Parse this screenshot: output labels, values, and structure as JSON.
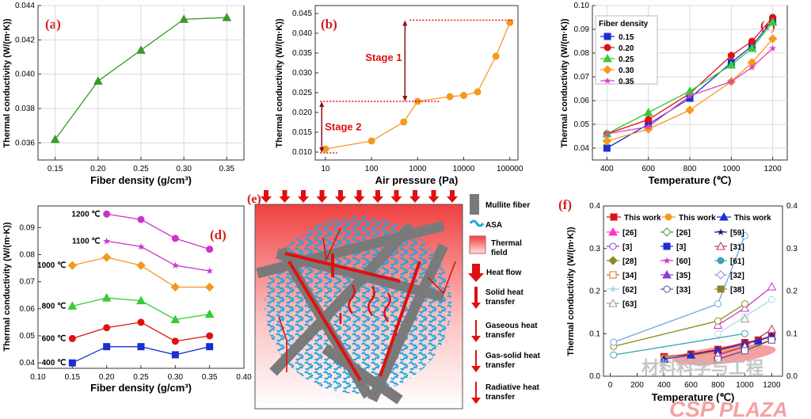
{
  "colors": {
    "red": "#e01010",
    "orange": "#f39a1d",
    "green": "#3a9a2a",
    "blue": "#1a2fd0",
    "pink": "#e040c0",
    "magenta": "#cc33cc",
    "panel_label": "#d81b1b",
    "grid": "#d9d9d9"
  },
  "panels": {
    "a": {
      "label": "(a)",
      "xlabel": "Fiber density (g/cm³)",
      "ylabel": "Thermal conductivity (W/(m·K))",
      "xticks": [
        "0.15",
        "0.20",
        "0.25",
        "0.30",
        "0.35"
      ],
      "yticks": [
        "0.036",
        "0.038",
        "0.040",
        "0.042",
        "0.044"
      ]
    },
    "b": {
      "label": "(b)",
      "xlabel": "Air pressure (Pa)",
      "ylabel": "Thermal conductivity (W/(m·K))",
      "xticks": [
        "10",
        "100",
        "1000",
        "10000",
        "100000"
      ],
      "yticks": [
        "0.010",
        "0.015",
        "0.020",
        "0.025",
        "0.030",
        "0.035",
        "0.040",
        "0.045"
      ],
      "stage1": "Stage 1",
      "stage2": "Stage 2"
    },
    "c": {
      "label": "(c)",
      "xlabel": "Temperature (℃)",
      "ylabel": "Thermal conductivity (W/(m·K))",
      "xticks": [
        "400",
        "600",
        "800",
        "1000",
        "1200"
      ],
      "yticks": [
        "0.04",
        "0.05",
        "0.06",
        "0.07",
        "0.08",
        "0.09",
        "0.10"
      ],
      "legend_title": "Fiber density"
    },
    "d": {
      "label": "(d)",
      "xlabel": "Fiber density (g/cm³)",
      "ylabel": "Thermal conductivity (W/(m·K))",
      "xticks": [
        "0.10",
        "0.15",
        "0.20",
        "0.25",
        "0.30",
        "0.35",
        "0.40"
      ],
      "yticks": [
        "0.04",
        "0.05",
        "0.06",
        "0.07",
        "0.08",
        "0.09"
      ],
      "temp_labels": [
        "1200 ℃",
        "1100 ℃",
        "1000 ℃",
        "800 ℃",
        "600 ℃",
        "400 ℃"
      ]
    },
    "e": {
      "label": "(e)",
      "legend": [
        "Mullite fiber",
        "ASA",
        "Thermal field",
        "Heat flow",
        "Solid heat transfer",
        "Gaseous heat transfer",
        "Gas-solid heat transfer",
        "Radiative heat transfer"
      ]
    },
    "f": {
      "label": "(f)",
      "xlabel": "Temperature (℃)",
      "ylabel": "Thermal conductivity (W/(m·K))",
      "xticks": [
        "0",
        "200",
        "400",
        "600",
        "800",
        "1000",
        "1200"
      ],
      "yticks": [
        "0.0",
        "0.1",
        "0.2",
        "0.3",
        "0.4"
      ],
      "this_work": "This work",
      "legend_refs": [
        "[26]",
        "[26]",
        "[59]",
        "[3]",
        "[3]",
        "[31]",
        "[28]",
        "[60]",
        "[61]",
        "[34]",
        "[35]",
        "[32]",
        "[62]",
        "[33]",
        "[38]",
        "[63]"
      ]
    }
  },
  "watermark": {
    "cn": "材料科学与工程",
    "csp": "CSP",
    "plaza": "PLAZA"
  },
  "chart_data": [
    {
      "type": "line",
      "title": "(a)",
      "xlabel": "Fiber density (g/cm³)",
      "ylabel": "Thermal conductivity (W/(m·K))",
      "x": [
        0.15,
        0.2,
        0.25,
        0.3,
        0.35
      ],
      "values": [
        0.0362,
        0.0396,
        0.0414,
        0.0432,
        0.0433
      ],
      "xlim": [
        0.13,
        0.37
      ],
      "ylim": [
        0.035,
        0.044
      ]
    },
    {
      "type": "line",
      "title": "(b)",
      "xlabel": "Air pressure (Pa)",
      "ylabel": "Thermal conductivity (W/(m·K))",
      "xscale": "log",
      "x": [
        10,
        100,
        500,
        1000,
        5000,
        10000,
        20000,
        50000,
        100000
      ],
      "values": [
        0.0108,
        0.0128,
        0.0176,
        0.0228,
        0.024,
        0.0243,
        0.0252,
        0.0342,
        0.0427
      ],
      "xlim": [
        6,
        150000
      ],
      "ylim": [
        0.008,
        0.047
      ]
    },
    {
      "type": "line",
      "title": "(c)",
      "xlabel": "Temperature (℃)",
      "ylabel": "Thermal conductivity (W/(m·K))",
      "legend_title": "Fiber density",
      "x": [
        400,
        600,
        800,
        1000,
        1100,
        1200
      ],
      "xlim": [
        330,
        1270
      ],
      "ylim": [
        0.035,
        0.1
      ],
      "series": [
        {
          "name": "0.15",
          "values": [
            0.04,
            0.05,
            0.061,
            0.076,
            0.083,
            0.094
          ]
        },
        {
          "name": "0.20",
          "values": [
            0.046,
            0.052,
            0.063,
            0.079,
            0.085,
            0.095
          ]
        },
        {
          "name": "0.25",
          "values": [
            0.046,
            0.055,
            0.064,
            0.075,
            0.082,
            0.093
          ]
        },
        {
          "name": "0.30",
          "values": [
            0.043,
            0.048,
            0.056,
            0.068,
            0.076,
            0.086
          ]
        },
        {
          "name": "0.35",
          "values": [
            0.046,
            0.049,
            0.062,
            0.068,
            0.074,
            0.082
          ]
        }
      ]
    },
    {
      "type": "line",
      "title": "(d)",
      "xlabel": "Fiber density (g/cm³)",
      "ylabel": "Thermal conductivity (W/(m·K))",
      "x": [
        0.15,
        0.2,
        0.25,
        0.3,
        0.35
      ],
      "xlim": [
        0.1,
        0.4
      ],
      "ylim": [
        0.038,
        0.098
      ],
      "series": [
        {
          "name": "1200 ℃",
          "values": [
            null,
            0.095,
            0.093,
            0.086,
            0.082
          ]
        },
        {
          "name": "1100 ℃",
          "values": [
            null,
            0.085,
            0.083,
            0.076,
            0.074
          ]
        },
        {
          "name": "1000 ℃",
          "values": [
            0.076,
            0.079,
            0.076,
            0.068,
            0.068
          ]
        },
        {
          "name": "800 ℃",
          "values": [
            0.061,
            0.064,
            0.063,
            0.056,
            0.058
          ]
        },
        {
          "name": "600 ℃",
          "values": [
            0.049,
            0.053,
            0.055,
            0.048,
            0.05
          ]
        },
        {
          "name": "400 ℃",
          "values": [
            0.04,
            0.046,
            0.046,
            0.043,
            0.046
          ]
        }
      ]
    },
    {
      "type": "line",
      "title": "(f)",
      "xlabel": "Temperature (℃)",
      "ylabel": "Thermal conductivity (W/(m·K))",
      "xlim": [
        -50,
        1280
      ],
      "ylim": [
        0,
        0.4
      ],
      "series": [
        {
          "name": "This work",
          "x": [
            400,
            600,
            800,
            1000,
            1100,
            1200
          ],
          "values": [
            0.046,
            0.052,
            0.063,
            0.079,
            0.085,
            0.095
          ]
        },
        {
          "name": "This work",
          "x": [
            400,
            600,
            800,
            1000,
            1100,
            1200
          ],
          "values": [
            0.043,
            0.048,
            0.056,
            0.068,
            0.076,
            0.086
          ]
        },
        {
          "name": "This work",
          "x": [
            400,
            600,
            800,
            1000,
            1100,
            1200
          ],
          "values": [
            0.04,
            0.05,
            0.061,
            0.076,
            0.083,
            0.094
          ]
        },
        {
          "name": "[26]",
          "x": [
            800,
            1000,
            1200
          ],
          "values": [
            0.12,
            0.16,
            0.21
          ]
        },
        {
          "name": "[3]",
          "x": [
            800,
            1000,
            1200
          ],
          "values": [
            0.05,
            0.07,
            0.11
          ]
        },
        {
          "name": "[28]",
          "x": [
            25,
            800,
            1000
          ],
          "values": [
            0.07,
            0.13,
            0.17
          ]
        },
        {
          "name": "[34]",
          "x": [
            25,
            1000
          ],
          "values": [
            0.05,
            0.1
          ]
        },
        {
          "name": "[62]",
          "x": [
            25,
            800,
            1000
          ],
          "values": [
            0.08,
            0.17,
            0.33
          ]
        },
        {
          "name": "[33]",
          "x": [
            800,
            1000,
            1200
          ],
          "values": [
            0.04,
            0.06,
            0.085
          ]
        },
        {
          "name": "[61]",
          "x": [
            800,
            1000,
            1200
          ],
          "values": [
            0.1,
            0.14,
            0.18
          ]
        },
        {
          "name": "[63]",
          "x": [
            1000
          ],
          "values": [
            0.135
          ]
        }
      ]
    }
  ]
}
